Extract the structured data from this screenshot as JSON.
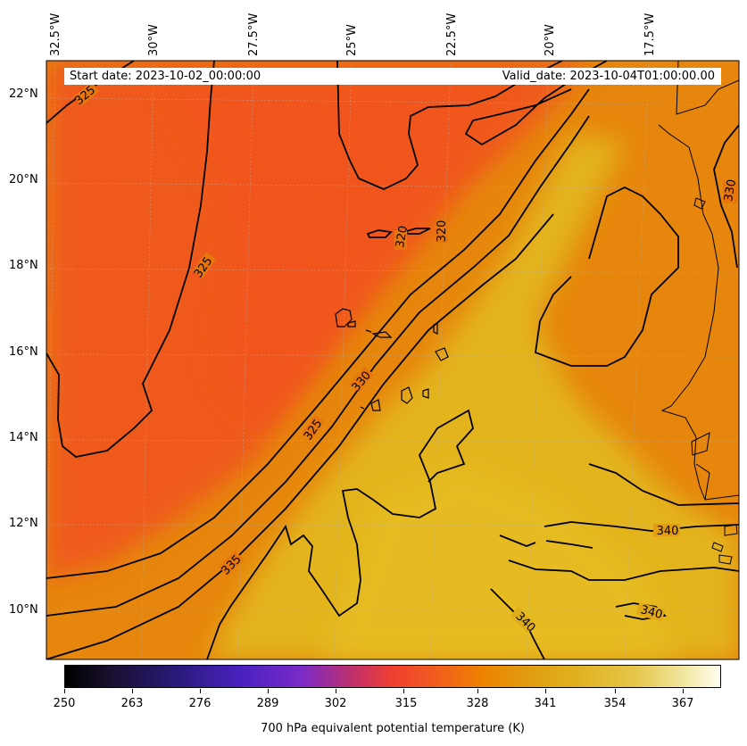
{
  "header": {
    "start_date": "Start date: 2023-10-02_00:00:00",
    "valid_date": "Valid_date: 2023-10-04T01:00:00.00"
  },
  "lon_labels": [
    "32.5°W",
    "30°W",
    "27.5°W",
    "25°W",
    "22.5°W",
    "20°W",
    "17.5°W"
  ],
  "lat_labels": [
    "22°N",
    "20°N",
    "18°N",
    "16°N",
    "14°N",
    "12°N",
    "10°N"
  ],
  "contour_labels": [
    "325",
    "325",
    "325",
    "330",
    "335",
    "320",
    "320",
    "330",
    "340",
    "340",
    "340"
  ],
  "colorbar": {
    "title": "700 hPa equivalent potential temperature (K)",
    "ticks": [
      "250",
      "263",
      "276",
      "289",
      "302",
      "315",
      "328",
      "341",
      "354",
      "367"
    ]
  },
  "colors": {
    "field_cold": "#ee5c1a",
    "field_mid": "#e88a08",
    "field_warm": "#e0b21c",
    "contour": "#000000"
  }
}
